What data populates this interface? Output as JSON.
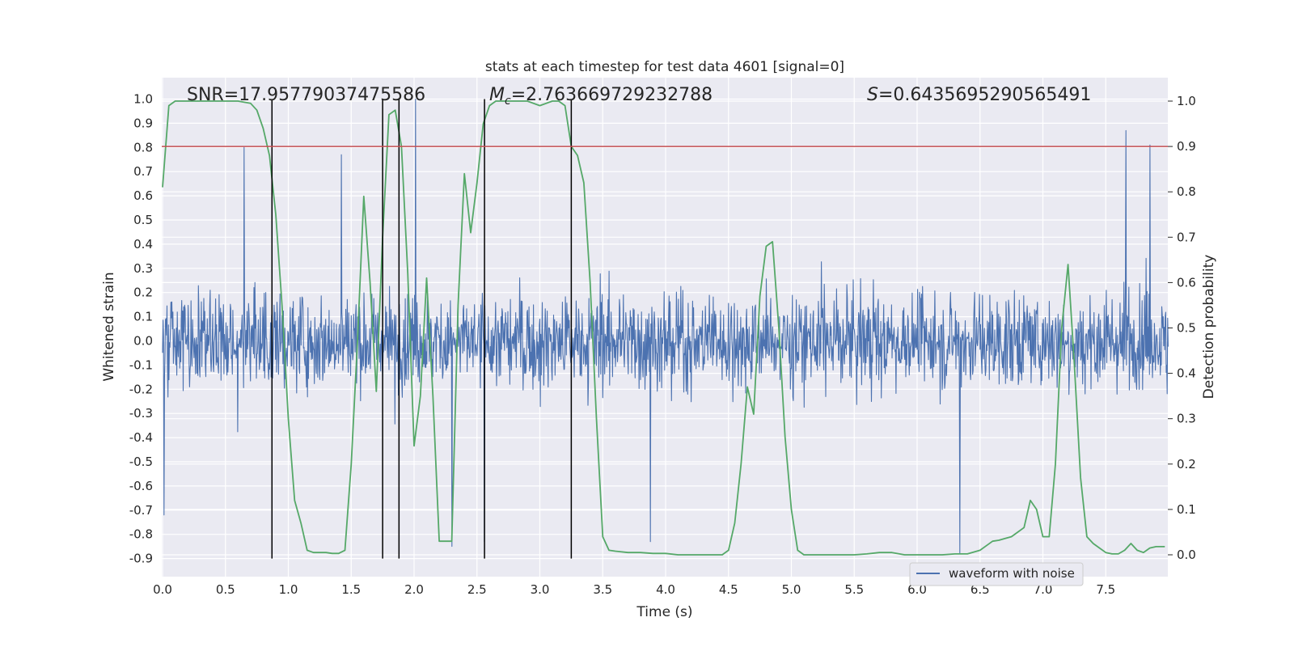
{
  "chart_data": {
    "type": "line",
    "title": "stats at each timestep for test data 4601 [signal=0]",
    "xlabel": "Time (s)",
    "ylabel": "Whitened strain",
    "y2label": "Detection probability",
    "xlim": [
      0.0,
      8.0
    ],
    "ylim": [
      -0.95,
      1.07
    ],
    "y2lim": [
      -0.05,
      1.04
    ],
    "xticks": [
      "0.0",
      "0.5",
      "1.0",
      "1.5",
      "2.0",
      "2.5",
      "3.0",
      "3.5",
      "4.0",
      "4.5",
      "5.0",
      "5.5",
      "6.0",
      "6.5",
      "7.0",
      "7.5"
    ],
    "yticks": [
      "1.0",
      "0.9",
      "0.8",
      "0.7",
      "0.6",
      "0.5",
      "0.4",
      "0.3",
      "0.2",
      "0.1",
      "0.0",
      "-0.1",
      "-0.2",
      "-0.3",
      "-0.4",
      "-0.5",
      "-0.6",
      "-0.7",
      "-0.8",
      "-0.9"
    ],
    "y2ticks": [
      "1.0",
      "0.9",
      "0.8",
      "0.7",
      "0.6",
      "0.5",
      "0.4",
      "0.3",
      "0.2",
      "0.1",
      "0.0"
    ],
    "grid": true,
    "legend": {
      "position": "lower-right",
      "entries": [
        "waveform with noise"
      ]
    },
    "annotations": {
      "snr": "SNR=17.95779037475586",
      "mc_symbol": "M",
      "mc_sub": "c",
      "mc_value": "=2.763669729232788",
      "s_symbol": "S",
      "s_value": "=0.6435695290565491"
    },
    "threshold": {
      "value": 0.9,
      "axis": "y2",
      "color": "#c44e52"
    },
    "vlines_x": [
      0.87,
      1.75,
      1.88,
      2.56,
      3.25
    ],
    "waveform": {
      "name": "waveform with noise",
      "color": "#4c72b0",
      "samples": 2048,
      "envelope_typical": 0.3,
      "peaks": [
        {
          "x": 0.01,
          "y": -0.72
        },
        {
          "x": 0.65,
          "y": 0.8
        },
        {
          "x": 1.42,
          "y": 0.77
        },
        {
          "x": 2.01,
          "y": 1.0
        },
        {
          "x": 2.3,
          "y": -0.85
        },
        {
          "x": 2.56,
          "y": -0.83
        },
        {
          "x": 3.88,
          "y": -0.83
        },
        {
          "x": 6.34,
          "y": 0.82
        },
        {
          "x": 6.34,
          "y": -0.88
        },
        {
          "x": 7.66,
          "y": 0.87
        },
        {
          "x": 7.85,
          "y": 0.81
        }
      ]
    },
    "probability": {
      "color": "#55a868",
      "x": [
        0.0,
        0.05,
        0.1,
        0.2,
        0.3,
        0.4,
        0.5,
        0.6,
        0.7,
        0.75,
        0.8,
        0.85,
        0.9,
        0.95,
        1.0,
        1.05,
        1.1,
        1.15,
        1.2,
        1.3,
        1.35,
        1.4,
        1.45,
        1.5,
        1.55,
        1.6,
        1.65,
        1.7,
        1.75,
        1.8,
        1.85,
        1.9,
        1.95,
        2.0,
        2.05,
        2.1,
        2.15,
        2.2,
        2.25,
        2.3,
        2.35,
        2.4,
        2.45,
        2.5,
        2.55,
        2.6,
        2.65,
        2.7,
        2.8,
        2.9,
        3.0,
        3.1,
        3.15,
        3.2,
        3.25,
        3.3,
        3.35,
        3.4,
        3.45,
        3.5,
        3.55,
        3.6,
        3.7,
        3.8,
        3.9,
        4.0,
        4.1,
        4.2,
        4.3,
        4.4,
        4.45,
        4.5,
        4.55,
        4.6,
        4.65,
        4.7,
        4.75,
        4.8,
        4.85,
        4.9,
        4.95,
        5.0,
        5.05,
        5.1,
        5.2,
        5.3,
        5.4,
        5.5,
        5.6,
        5.7,
        5.8,
        5.9,
        6.0,
        6.1,
        6.2,
        6.3,
        6.4,
        6.5,
        6.55,
        6.6,
        6.65,
        6.7,
        6.75,
        6.8,
        6.85,
        6.9,
        6.95,
        7.0,
        7.05,
        7.1,
        7.15,
        7.2,
        7.25,
        7.3,
        7.35,
        7.4,
        7.45,
        7.5,
        7.55,
        7.6,
        7.65,
        7.7,
        7.75,
        7.8,
        7.85,
        7.9,
        7.97
      ],
      "y": [
        0.81,
        0.99,
        1.0,
        1.0,
        1.0,
        1.0,
        1.0,
        1.0,
        0.995,
        0.98,
        0.94,
        0.88,
        0.75,
        0.55,
        0.3,
        0.12,
        0.07,
        0.01,
        0.005,
        0.005,
        0.003,
        0.003,
        0.01,
        0.2,
        0.47,
        0.79,
        0.6,
        0.36,
        0.7,
        0.97,
        0.98,
        0.9,
        0.62,
        0.24,
        0.35,
        0.61,
        0.35,
        0.03,
        0.03,
        0.03,
        0.55,
        0.84,
        0.71,
        0.82,
        0.95,
        0.99,
        1.0,
        1.0,
        1.0,
        1.0,
        0.99,
        1.0,
        1.0,
        0.99,
        0.9,
        0.88,
        0.82,
        0.6,
        0.3,
        0.04,
        0.01,
        0.008,
        0.005,
        0.005,
        0.003,
        0.003,
        0.0,
        0.0,
        0.0,
        0.0,
        0.0,
        0.01,
        0.07,
        0.2,
        0.37,
        0.31,
        0.57,
        0.68,
        0.69,
        0.5,
        0.26,
        0.1,
        0.01,
        0.0,
        0.0,
        0.0,
        0.0,
        0.0,
        0.002,
        0.005,
        0.005,
        0.0,
        0.0,
        0.0,
        0.0,
        0.002,
        0.002,
        0.01,
        0.02,
        0.03,
        0.032,
        0.036,
        0.04,
        0.05,
        0.06,
        0.12,
        0.1,
        0.04,
        0.04,
        0.2,
        0.5,
        0.64,
        0.42,
        0.17,
        0.04,
        0.025,
        0.015,
        0.005,
        0.002,
        0.002,
        0.01,
        0.025,
        0.01,
        0.005,
        0.015,
        0.018,
        0.018
      ]
    }
  }
}
